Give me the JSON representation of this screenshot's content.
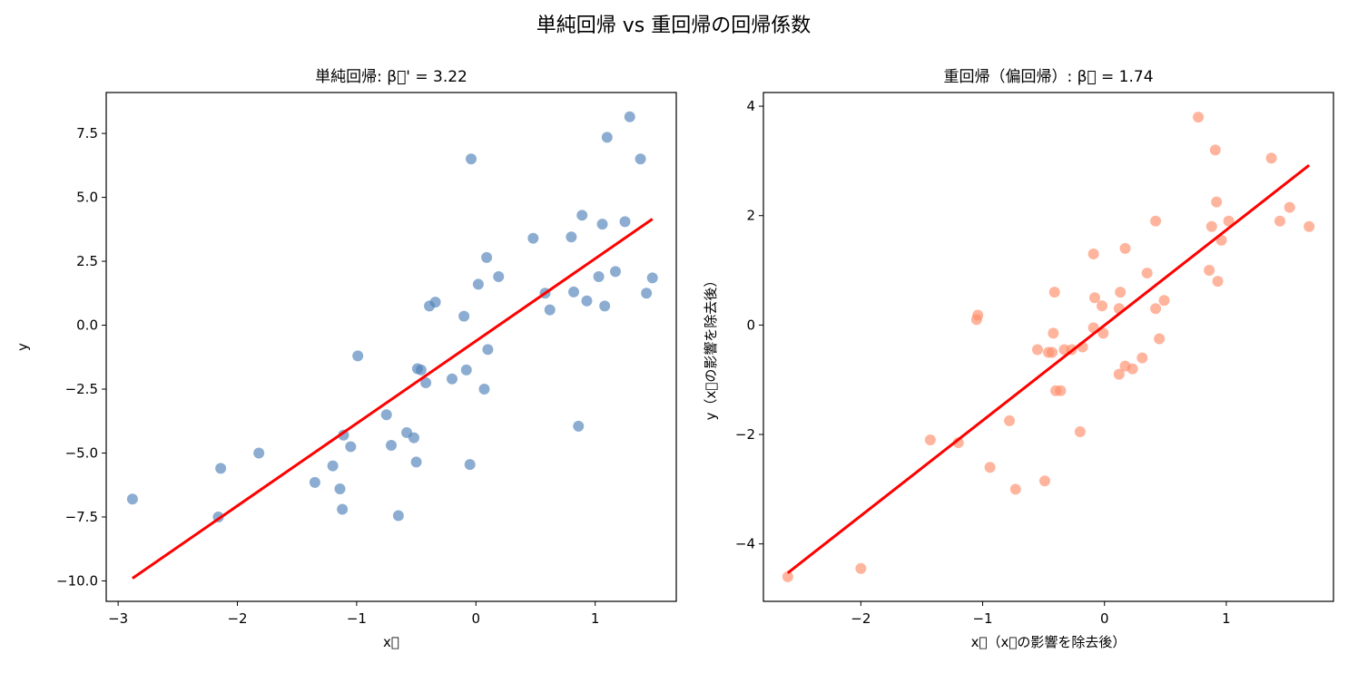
{
  "suptitle": "単純回帰 vs 重回帰の回帰係数",
  "chart_data": [
    {
      "type": "scatter",
      "title": "単純回帰: β\u0000' = 3.22",
      "xlabel": "x\u0000",
      "ylabel": "y",
      "xlim": [
        -3.1,
        1.68
      ],
      "ylim": [
        -10.8,
        9.1
      ],
      "xticks": [
        -3,
        -2,
        -1,
        0,
        1
      ],
      "yticks": [
        -10.0,
        -7.5,
        -5.0,
        -2.5,
        0.0,
        2.5,
        5.0,
        7.5
      ],
      "tick_labels_x": [
        "−3",
        "−2",
        "−1",
        "0",
        "1"
      ],
      "tick_labels_y": [
        "−10.0",
        "−7.5",
        "−5.0",
        "−2.5",
        "0.0",
        "2.5",
        "5.0",
        "7.5"
      ],
      "point_color": "#4f81b9",
      "fit_line": {
        "color": "#ff0000",
        "x": [
          -2.88,
          1.48
        ],
        "y": [
          -9.9,
          4.15
        ]
      },
      "points": [
        [
          -2.88,
          -6.8
        ],
        [
          -2.16,
          -7.5
        ],
        [
          -2.14,
          -5.6
        ],
        [
          -1.82,
          -5.0
        ],
        [
          -1.35,
          -6.15
        ],
        [
          -1.2,
          -5.5
        ],
        [
          -1.14,
          -6.4
        ],
        [
          -1.12,
          -7.2
        ],
        [
          -1.11,
          -4.3
        ],
        [
          -1.05,
          -4.75
        ],
        [
          -0.99,
          -1.2
        ],
        [
          -0.75,
          -3.5
        ],
        [
          -0.71,
          -4.7
        ],
        [
          -0.65,
          -7.45
        ],
        [
          -0.58,
          -4.2
        ],
        [
          -0.52,
          -4.4
        ],
        [
          -0.5,
          -5.35
        ],
        [
          -0.49,
          -1.7
        ],
        [
          -0.46,
          -1.75
        ],
        [
          -0.42,
          -2.25
        ],
        [
          -0.39,
          0.75
        ],
        [
          -0.34,
          0.9
        ],
        [
          -0.2,
          -2.1
        ],
        [
          -0.1,
          0.35
        ],
        [
          -0.08,
          -1.75
        ],
        [
          -0.05,
          -5.45
        ],
        [
          -0.04,
          6.5
        ],
        [
          0.02,
          1.6
        ],
        [
          0.07,
          -2.5
        ],
        [
          0.09,
          2.65
        ],
        [
          0.1,
          -0.95
        ],
        [
          0.19,
          1.9
        ],
        [
          0.48,
          3.4
        ],
        [
          0.58,
          1.25
        ],
        [
          0.62,
          0.6
        ],
        [
          0.8,
          3.45
        ],
        [
          0.82,
          1.3
        ],
        [
          0.86,
          -3.95
        ],
        [
          0.89,
          4.3
        ],
        [
          0.93,
          0.95
        ],
        [
          1.03,
          1.9
        ],
        [
          1.06,
          3.95
        ],
        [
          1.08,
          0.75
        ],
        [
          1.1,
          7.35
        ],
        [
          1.17,
          2.1
        ],
        [
          1.25,
          4.05
        ],
        [
          1.29,
          8.15
        ],
        [
          1.38,
          6.5
        ],
        [
          1.43,
          1.25
        ],
        [
          1.48,
          1.85
        ]
      ]
    },
    {
      "type": "scatter",
      "title": "重回帰（偏回帰）: β\u0000 = 1.74",
      "xlabel": "x\u0000（x\u0000の影響を除去後）",
      "ylabel": "y（x\u0000の影響を除去後）",
      "xlim": [
        -2.8,
        1.88
      ],
      "ylim": [
        -5.05,
        4.25
      ],
      "xticks": [
        -2,
        -1,
        0,
        1
      ],
      "yticks": [
        -4,
        -2,
        0,
        2,
        4
      ],
      "tick_labels_x": [
        "−2",
        "−1",
        "0",
        "1"
      ],
      "tick_labels_y": [
        "−4",
        "−2",
        "0",
        "2",
        "4"
      ],
      "point_color": "#ff8c69",
      "fit_line": {
        "color": "#ff0000",
        "x": [
          -2.6,
          1.68
        ],
        "y": [
          -4.53,
          2.92
        ]
      },
      "points": [
        [
          -2.6,
          -4.6
        ],
        [
          -2.0,
          -4.45
        ],
        [
          -1.43,
          -2.1
        ],
        [
          -1.2,
          -2.15
        ],
        [
          -1.05,
          0.1
        ],
        [
          -1.04,
          0.18
        ],
        [
          -0.94,
          -2.6
        ],
        [
          -0.78,
          -1.75
        ],
        [
          -0.73,
          -3.0
        ],
        [
          -0.55,
          -0.45
        ],
        [
          -0.49,
          -2.85
        ],
        [
          -0.46,
          -0.5
        ],
        [
          -0.43,
          -0.5
        ],
        [
          -0.42,
          -0.15
        ],
        [
          -0.41,
          0.6
        ],
        [
          -0.4,
          -1.2
        ],
        [
          -0.36,
          -1.2
        ],
        [
          -0.33,
          -0.45
        ],
        [
          -0.27,
          -0.45
        ],
        [
          -0.18,
          -0.4
        ],
        [
          -0.2,
          -1.95
        ],
        [
          -0.09,
          1.3
        ],
        [
          -0.08,
          0.5
        ],
        [
          -0.09,
          -0.05
        ],
        [
          -0.02,
          0.35
        ],
        [
          -0.01,
          -0.15
        ],
        [
          0.12,
          -0.9
        ],
        [
          0.12,
          0.3
        ],
        [
          0.13,
          0.6
        ],
        [
          0.17,
          1.4
        ],
        [
          0.17,
          -0.75
        ],
        [
          0.23,
          -0.8
        ],
        [
          0.31,
          -0.6
        ],
        [
          0.35,
          0.95
        ],
        [
          0.42,
          0.3
        ],
        [
          0.42,
          1.9
        ],
        [
          0.45,
          -0.25
        ],
        [
          0.49,
          0.45
        ],
        [
          0.77,
          3.8
        ],
        [
          0.86,
          1.0
        ],
        [
          0.88,
          1.8
        ],
        [
          0.91,
          3.2
        ],
        [
          0.92,
          2.25
        ],
        [
          0.93,
          0.8
        ],
        [
          0.96,
          1.55
        ],
        [
          1.02,
          1.9
        ],
        [
          1.37,
          3.05
        ],
        [
          1.44,
          1.9
        ],
        [
          1.52,
          2.15
        ],
        [
          1.68,
          1.8
        ]
      ]
    }
  ]
}
